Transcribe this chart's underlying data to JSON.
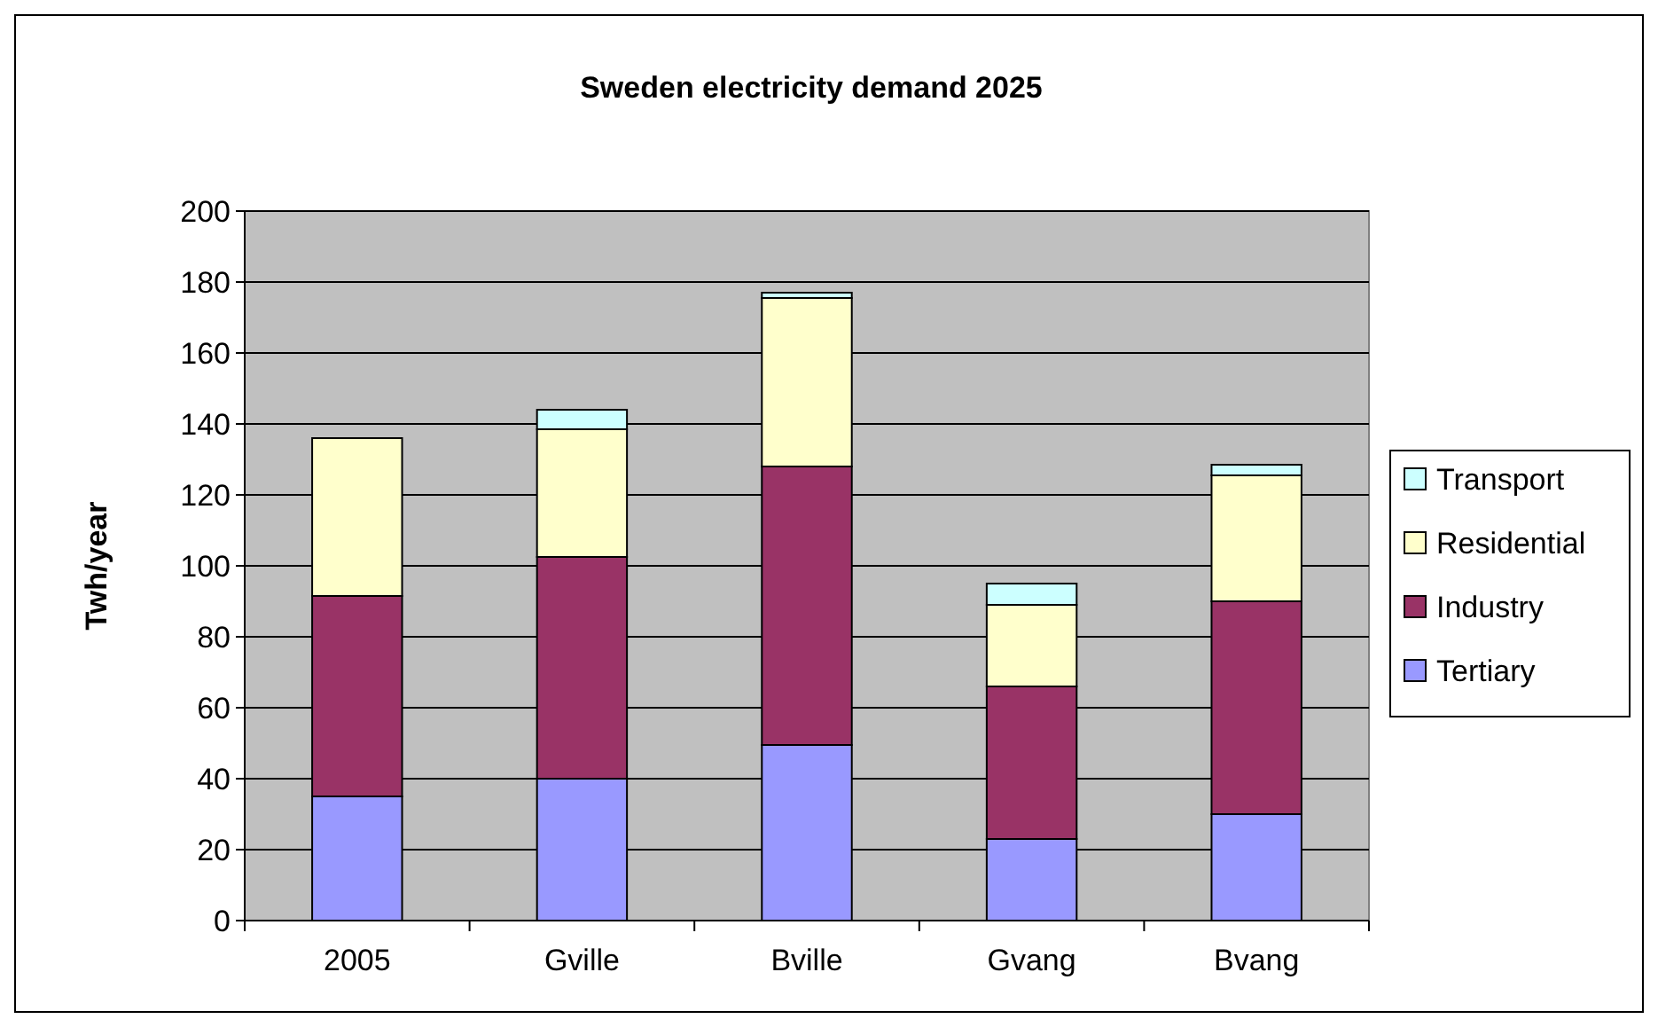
{
  "chart_data": {
    "type": "bar",
    "title": "Sweden electricity demand 2025",
    "ylabel": "Twh/year",
    "categories": [
      "2005",
      "Gville",
      "Bville",
      "Gvang",
      "Bvang"
    ],
    "stacked": true,
    "ylim": [
      0,
      200
    ],
    "yticks": [
      0,
      20,
      40,
      60,
      80,
      100,
      120,
      140,
      160,
      180,
      200
    ],
    "grid": "y",
    "legend": "right",
    "series": [
      {
        "name": "Tertiary",
        "color": "#9999ff",
        "values": [
          35,
          40,
          49.5,
          23,
          30
        ]
      },
      {
        "name": "Industry",
        "color": "#993366",
        "values": [
          56.5,
          62.5,
          78.5,
          43,
          60
        ]
      },
      {
        "name": "Residential",
        "color": "#ffffcc",
        "values": [
          44.5,
          36,
          47.5,
          23,
          35.5
        ]
      },
      {
        "name": "Transport",
        "color": "#ccffff",
        "values": [
          0,
          5.5,
          1.5,
          6,
          3
        ]
      }
    ]
  }
}
